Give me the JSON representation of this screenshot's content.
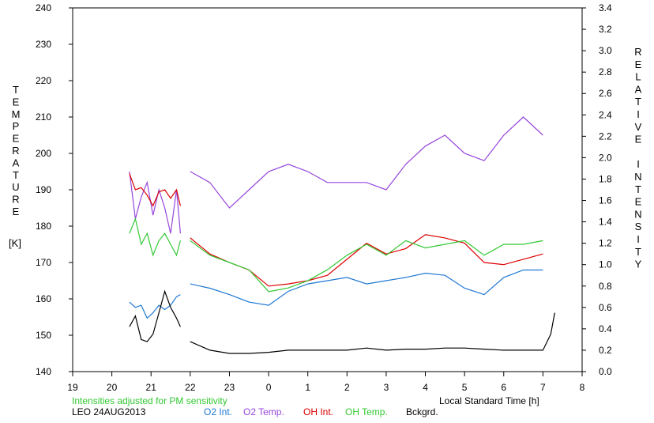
{
  "chart_data": {
    "type": "line",
    "left_axis": {
      "label": "TEMPERATURE",
      "unit": "[K]",
      "range": [
        140,
        240
      ],
      "ticks": [
        "140",
        "150",
        "160",
        "170",
        "180",
        "190",
        "200",
        "210",
        "220",
        "230",
        "240"
      ]
    },
    "right_axis": {
      "label": "RELATIVE INTENSITY",
      "range": [
        0.0,
        3.4
      ],
      "ticks": [
        "0.0",
        "0.2",
        "0.4",
        "0.6",
        "0.8",
        "1.0",
        "1.2",
        "1.4",
        "1.6",
        "1.8",
        "2.0",
        "2.2",
        "2.4",
        "2.6",
        "2.8",
        "3.0",
        "3.2",
        "3.4"
      ]
    },
    "x_axis": {
      "label": "Local Standard Time [h]",
      "range": [
        19,
        32
      ],
      "ticks": [
        "19",
        "20",
        "21",
        "22",
        "23",
        "0",
        "1",
        "2",
        "3",
        "4",
        "5",
        "6",
        "7",
        "8"
      ]
    },
    "note": "Intensities adjusted for PM sensitivity",
    "footer_id": "LEO 24AUG2013",
    "colors": {
      "o2_int": "#1e78d2",
      "o2_temp": "#9646dc",
      "oh_int": "#dc0000",
      "oh_temp": "#32c832",
      "bckgrd": "#000000"
    },
    "series": [
      {
        "name": "O2 Int.",
        "axis": "right",
        "segments": [
          {
            "x": [
              20.45,
              20.6,
              20.75,
              20.9,
              21.05,
              21.2,
              21.35,
              21.5,
              21.65,
              21.75
            ],
            "y": [
              0.65,
              0.6,
              0.62,
              0.5,
              0.55,
              0.62,
              0.58,
              0.62,
              0.7,
              0.72
            ]
          },
          {
            "x": [
              22.0,
              22.5,
              23.0,
              23.5,
              24.0,
              24.5,
              25.0,
              25.5,
              26.0,
              26.5,
              27.0,
              27.5,
              28.0,
              28.5,
              29.0,
              29.5,
              30.0,
              30.5,
              31.0
            ],
            "y": [
              0.82,
              0.78,
              0.72,
              0.65,
              0.62,
              0.75,
              0.82,
              0.85,
              0.88,
              0.82,
              0.85,
              0.88,
              0.92,
              0.9,
              0.78,
              0.72,
              0.88,
              0.95,
              0.95
            ]
          }
        ]
      },
      {
        "name": "O2 Temp.",
        "axis": "left",
        "segments": [
          {
            "x": [
              20.45,
              20.6,
              20.75,
              20.9,
              21.05,
              21.2,
              21.35,
              21.5,
              21.65,
              21.75
            ],
            "y": [
              195,
              182,
              188,
              192,
              183,
              190,
              185,
              178,
              190,
              178
            ]
          },
          {
            "x": [
              22.0,
              22.5,
              23.0,
              23.5,
              24.0,
              24.5,
              25.0,
              25.5,
              26.0,
              26.5,
              27.0,
              27.5,
              28.0,
              28.5,
              29.0,
              29.5,
              30.0,
              30.5,
              31.0
            ],
            "y": [
              195,
              192,
              185,
              190,
              195,
              197,
              195,
              192,
              192,
              192,
              190,
              197,
              202,
              205,
              200,
              198,
              205,
              210,
              205
            ]
          }
        ]
      },
      {
        "name": "OH Int.",
        "axis": "right",
        "segments": [
          {
            "x": [
              20.45,
              20.6,
              20.75,
              20.9,
              21.05,
              21.2,
              21.35,
              21.5,
              21.65,
              21.75
            ],
            "y": [
              1.85,
              1.7,
              1.72,
              1.65,
              1.55,
              1.68,
              1.7,
              1.62,
              1.7,
              1.55
            ]
          },
          {
            "x": [
              22.0,
              22.5,
              23.0,
              23.5,
              24.0,
              24.5,
              25.0,
              25.5,
              26.0,
              26.5,
              27.0,
              27.5,
              28.0,
              28.5,
              29.0,
              29.5,
              30.0,
              30.5,
              31.0
            ],
            "y": [
              1.25,
              1.1,
              1.02,
              0.95,
              0.8,
              0.82,
              0.85,
              0.9,
              1.05,
              1.2,
              1.1,
              1.15,
              1.28,
              1.25,
              1.2,
              1.02,
              1.0,
              1.05,
              1.1
            ]
          }
        ]
      },
      {
        "name": "OH Temp.",
        "axis": "left",
        "segments": [
          {
            "x": [
              20.45,
              20.6,
              20.75,
              20.9,
              21.05,
              21.2,
              21.35,
              21.5,
              21.65,
              21.75
            ],
            "y": [
              178,
              182,
              175,
              178,
              172,
              176,
              178,
              175,
              172,
              176
            ]
          },
          {
            "x": [
              22.0,
              22.5,
              23.0,
              23.5,
              24.0,
              24.5,
              25.0,
              25.5,
              26.0,
              26.5,
              27.0,
              27.5,
              28.0,
              28.5,
              29.0,
              29.5,
              30.0,
              30.5,
              31.0
            ],
            "y": [
              176,
              172,
              170,
              168,
              162,
              163,
              165,
              168,
              172,
              175,
              172,
              176,
              174,
              175,
              176,
              172,
              175,
              175,
              176
            ]
          }
        ]
      },
      {
        "name": "Bckgrd.",
        "axis": "right",
        "segments": [
          {
            "x": [
              20.45,
              20.6,
              20.75,
              20.9,
              21.05,
              21.2,
              21.35,
              21.5,
              21.65,
              21.75
            ],
            "y": [
              0.42,
              0.52,
              0.3,
              0.28,
              0.35,
              0.55,
              0.75,
              0.6,
              0.5,
              0.42
            ]
          },
          {
            "x": [
              22.0,
              22.5,
              23.0,
              23.5,
              24.0,
              24.5,
              25.0,
              25.5,
              26.0,
              26.5,
              27.0,
              27.5,
              28.0,
              28.5,
              29.0,
              29.5,
              30.0,
              30.5,
              31.0,
              31.2,
              31.3
            ],
            "y": [
              0.28,
              0.2,
              0.17,
              0.17,
              0.18,
              0.2,
              0.2,
              0.2,
              0.2,
              0.22,
              0.2,
              0.21,
              0.21,
              0.22,
              0.22,
              0.21,
              0.2,
              0.2,
              0.2,
              0.35,
              0.55
            ]
          }
        ]
      }
    ]
  }
}
